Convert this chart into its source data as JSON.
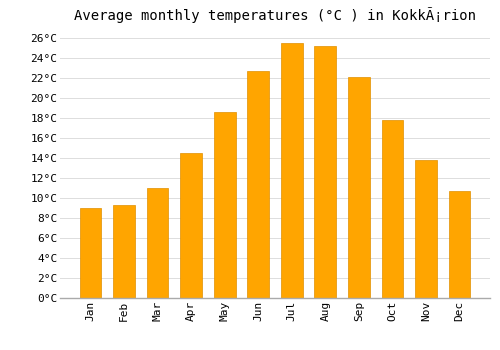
{
  "title": "Average monthly temperatures (°C ) in KokkÃ¡rion",
  "months": [
    "Jan",
    "Feb",
    "Mar",
    "Apr",
    "May",
    "Jun",
    "Jul",
    "Aug",
    "Sep",
    "Oct",
    "Nov",
    "Dec"
  ],
  "values": [
    9.0,
    9.3,
    11.0,
    14.5,
    18.6,
    22.7,
    25.5,
    25.2,
    22.1,
    17.8,
    13.8,
    10.7
  ],
  "bar_color": "#FFA500",
  "bar_edge_color": "#E09000",
  "background_color": "#FFFFFF",
  "plot_bg_color": "#FFFFFF",
  "grid_color": "#DDDDDD",
  "ylim": [
    0,
    27
  ],
  "ytick_step": 2,
  "title_fontsize": 10,
  "tick_fontsize": 8,
  "font_family": "monospace"
}
